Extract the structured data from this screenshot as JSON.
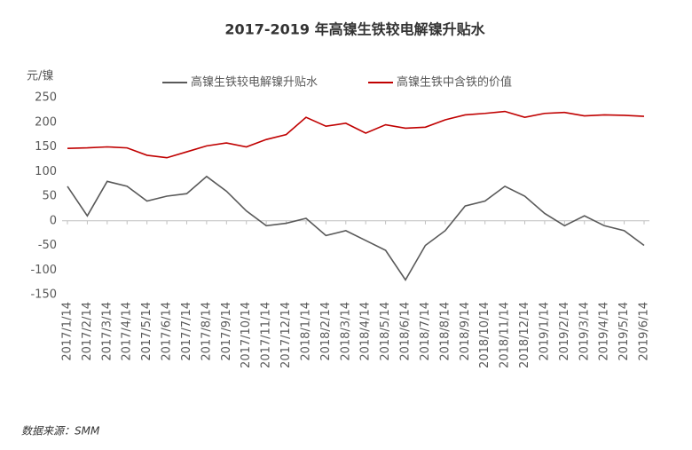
{
  "chart_data": {
    "type": "line",
    "title": "2017-2019 年高镍生铁较电解镍升贴水",
    "y_label": "元/镍",
    "source": "数据来源：SMM",
    "categories": [
      "2017/1/14",
      "2017/2/14",
      "2017/3/14",
      "2017/4/14",
      "2017/5/14",
      "2017/6/14",
      "2017/7/14",
      "2017/8/14",
      "2017/9/14",
      "2017/10/14",
      "2017/11/14",
      "2017/12/14",
      "2018/1/14",
      "2018/2/14",
      "2018/3/14",
      "2018/4/14",
      "2018/5/14",
      "2018/6/14",
      "2018/7/14",
      "2018/8/14",
      "2018/9/14",
      "2018/10/14",
      "2018/11/14",
      "2018/12/14",
      "2019/1/14",
      "2019/2/14",
      "2019/3/14",
      "2019/4/14",
      "2019/5/14",
      "2019/6/14"
    ],
    "series": [
      {
        "name": "高镍生铁较电解镍升贴水",
        "color": "#595959",
        "values": [
          70,
          10,
          80,
          70,
          40,
          50,
          55,
          90,
          60,
          20,
          -10,
          -5,
          5,
          -30,
          -20,
          -40,
          -60,
          -120,
          -50,
          -20,
          30,
          40,
          70,
          50,
          15,
          -10,
          10,
          -10,
          -20,
          -50
        ]
      },
      {
        "name": "高镍生铁中含铁的价值",
        "color": "#c00000",
        "values": [
          147,
          148,
          150,
          148,
          133,
          128,
          140,
          152,
          158,
          150,
          165,
          175,
          210,
          192,
          198,
          178,
          195,
          188,
          190,
          205,
          215,
          218,
          222,
          210,
          218,
          220,
          213,
          215,
          214,
          212
        ]
      }
    ],
    "ylim": [
      -150,
      250
    ],
    "yticks": [
      -150,
      -100,
      -50,
      0,
      50,
      100,
      150,
      200,
      250
    ],
    "legend": "top"
  }
}
